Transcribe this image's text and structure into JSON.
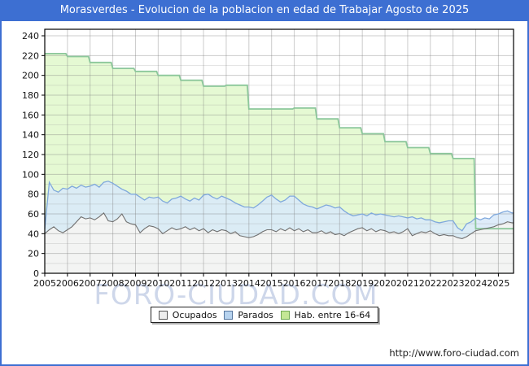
{
  "title": "Morasverdes - Evolucion de la poblacion en edad de Trabajar Agosto de 2025",
  "watermark": "FORO-CIUDAD.COM",
  "footer": {
    "url": "http://www.foro-ciudad.com"
  },
  "colors": {
    "frame_blue": "#3d6fd2",
    "titlebar_text": "#ffffff",
    "plot_border": "#000000",
    "gridline": "#d2d2d2",
    "hab_fill": "#e3f8cf",
    "hab_stroke": "#8cc79b",
    "parados_fill": "#d9e9f9",
    "parados_stroke": "#7fa8dc",
    "ocupados_fill": "#f4f4f2",
    "ocupados_stroke": "#707070",
    "watermark_color": "#aebddd"
  },
  "legend": {
    "items": [
      {
        "label": "Ocupados",
        "fill": "#ededed",
        "border": "#555555"
      },
      {
        "label": "Parados",
        "fill": "#b7d3ef",
        "border": "#55759e"
      },
      {
        "label": "Hab. entre 16-64",
        "fill": "#c4e795",
        "border": "#6fa853"
      }
    ]
  },
  "chart_data": {
    "type": "area",
    "title": "Morasverdes - Evolucion de la poblacion en edad de Trabajar Agosto de 2025",
    "legend_position": "bottom-center",
    "grid": true,
    "x_axis": {
      "start": 2005.0,
      "end": 2025.6,
      "ticks": [
        2005,
        2006,
        2007,
        2008,
        2009,
        2010,
        2011,
        2012,
        2013,
        2014,
        2015,
        2016,
        2017,
        2018,
        2019,
        2020,
        2021,
        2022,
        2023,
        2024,
        2025
      ]
    },
    "y_axis": {
      "ticks": [
        0,
        20,
        40,
        60,
        80,
        100,
        120,
        140,
        160,
        180,
        200,
        220,
        240
      ],
      "max": 246
    },
    "series": [
      {
        "name": "Hab. entre 16-64",
        "render": "yearly-steps",
        "fill": "#e3f8cf",
        "stroke": "#8cc79b",
        "years": [
          2005,
          2006,
          2007,
          2008,
          2009,
          2010,
          2011,
          2012,
          2013,
          2014,
          2015,
          2016,
          2017,
          2018,
          2019,
          2020,
          2021,
          2022,
          2023,
          2024,
          2025
        ],
        "values": [
          222,
          219,
          213,
          207,
          204,
          200,
          195,
          189,
          190,
          166,
          166,
          167,
          156,
          147,
          141,
          133,
          127,
          121,
          116,
          45,
          45
        ]
      },
      {
        "name": "Parados",
        "render": "line",
        "x_step": 0.2,
        "fill": "#d9e9f9",
        "stroke": "#7fa8dc",
        "values": [
          45,
          92,
          84,
          82,
          86,
          85,
          88,
          86,
          89,
          87,
          88,
          90,
          87,
          92,
          93,
          91,
          88,
          85,
          83,
          80,
          80,
          77,
          74,
          77,
          76,
          77,
          73,
          71,
          75,
          76,
          78,
          75,
          73,
          76,
          74,
          79,
          80,
          77,
          75,
          78,
          76,
          74,
          71,
          69,
          67,
          67,
          66,
          69,
          73,
          77,
          79,
          75,
          72,
          74,
          78,
          78,
          74,
          70,
          68,
          67,
          65,
          67,
          69,
          68,
          66,
          67,
          63,
          60,
          58,
          59,
          60,
          58,
          61,
          59,
          60,
          59,
          58,
          57,
          58,
          57,
          56,
          57,
          55,
          56,
          54,
          54,
          52,
          51,
          52,
          53,
          53,
          46,
          43,
          50,
          52,
          56,
          54,
          56,
          55,
          59,
          60,
          62,
          63,
          61
        ]
      },
      {
        "name": "Ocupados",
        "render": "line",
        "x_step": 0.2,
        "fill": "#f4f4f2",
        "stroke": "#707070",
        "values": [
          40,
          44,
          47,
          43,
          41,
          44,
          47,
          52,
          57,
          55,
          56,
          54,
          57,
          61,
          53,
          52,
          55,
          60,
          52,
          50,
          49,
          41,
          45,
          48,
          47,
          45,
          40,
          43,
          46,
          44,
          45,
          47,
          44,
          46,
          43,
          45,
          41,
          44,
          42,
          44,
          43,
          40,
          42,
          38,
          37,
          36,
          37,
          39,
          42,
          44,
          44,
          42,
          45,
          43,
          46,
          43,
          45,
          42,
          44,
          41,
          41,
          43,
          40,
          42,
          39,
          40,
          38,
          41,
          43,
          45,
          46,
          43,
          45,
          42,
          44,
          43,
          41,
          42,
          40,
          42,
          45,
          38,
          40,
          42,
          41,
          43,
          40,
          38,
          39,
          38,
          38,
          36,
          35,
          37,
          40,
          43,
          44,
          45,
          46,
          47,
          49,
          50,
          52,
          51
        ]
      }
    ]
  }
}
